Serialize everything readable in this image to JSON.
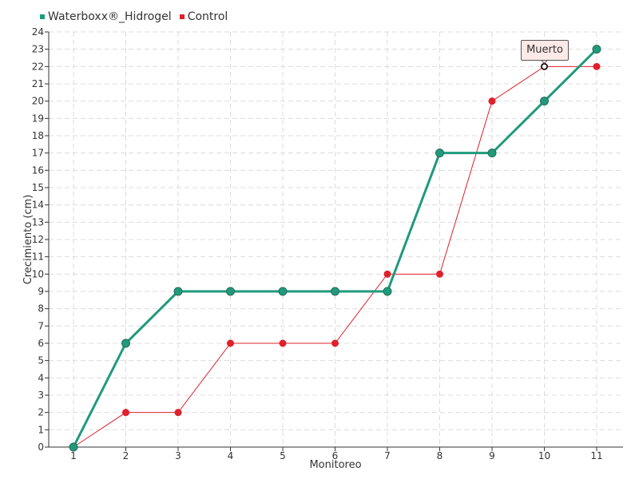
{
  "chart_data": {
    "type": "line",
    "xlabel": "Monitoreo",
    "ylabel": "Crecimiento (cm)",
    "categories": [
      "1",
      "2",
      "3",
      "4",
      "5",
      "6",
      "7",
      "8",
      "9",
      "10",
      "11"
    ],
    "ylim": [
      0,
      24
    ],
    "y_ticks": [
      "0",
      "1",
      "2",
      "3",
      "4",
      "5",
      "6",
      "7",
      "8",
      "9",
      "10",
      "11",
      "12",
      "13",
      "14",
      "15",
      "16",
      "17",
      "18",
      "19",
      "20",
      "21",
      "22",
      "23",
      "24"
    ],
    "grid": true,
    "legend_position": "top-left",
    "series": [
      {
        "name": "Waterboxx®_Hidrogel",
        "color": "#1f9a7c",
        "values": [
          0,
          6,
          9,
          9,
          9,
          9,
          9,
          17,
          17,
          20,
          23
        ]
      },
      {
        "name": "Control",
        "color": "#e0202b",
        "values": [
          0,
          2,
          2,
          6,
          6,
          6,
          10,
          10,
          20,
          22,
          22
        ]
      }
    ],
    "annotations": [
      {
        "text": "Muerto",
        "series": "Control",
        "category": "10",
        "value": 22
      }
    ]
  }
}
